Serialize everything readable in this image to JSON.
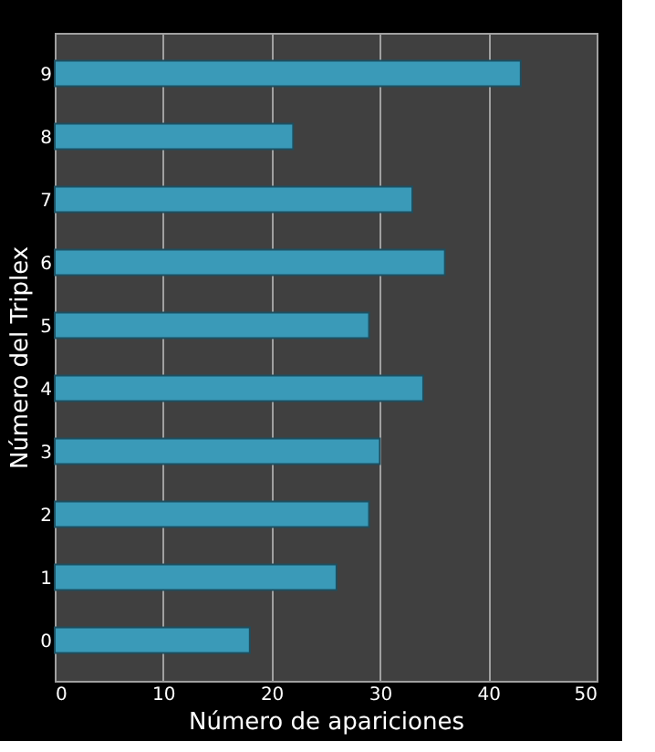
{
  "chart_data": {
    "type": "bar",
    "orientation": "horizontal",
    "xlabel": "Número  de apariciones",
    "ylabel": "Número  del Triplex",
    "categories": [
      "9",
      "8",
      "7",
      "6",
      "5",
      "4",
      "3",
      "2",
      "1",
      "0"
    ],
    "values": [
      43,
      22,
      33,
      36,
      29,
      34,
      30,
      29,
      26,
      18
    ],
    "color": "#3a9ab8",
    "xlim": [
      0,
      50
    ],
    "xticks": [
      0,
      10,
      20,
      30,
      40,
      50
    ],
    "grid": "x"
  }
}
